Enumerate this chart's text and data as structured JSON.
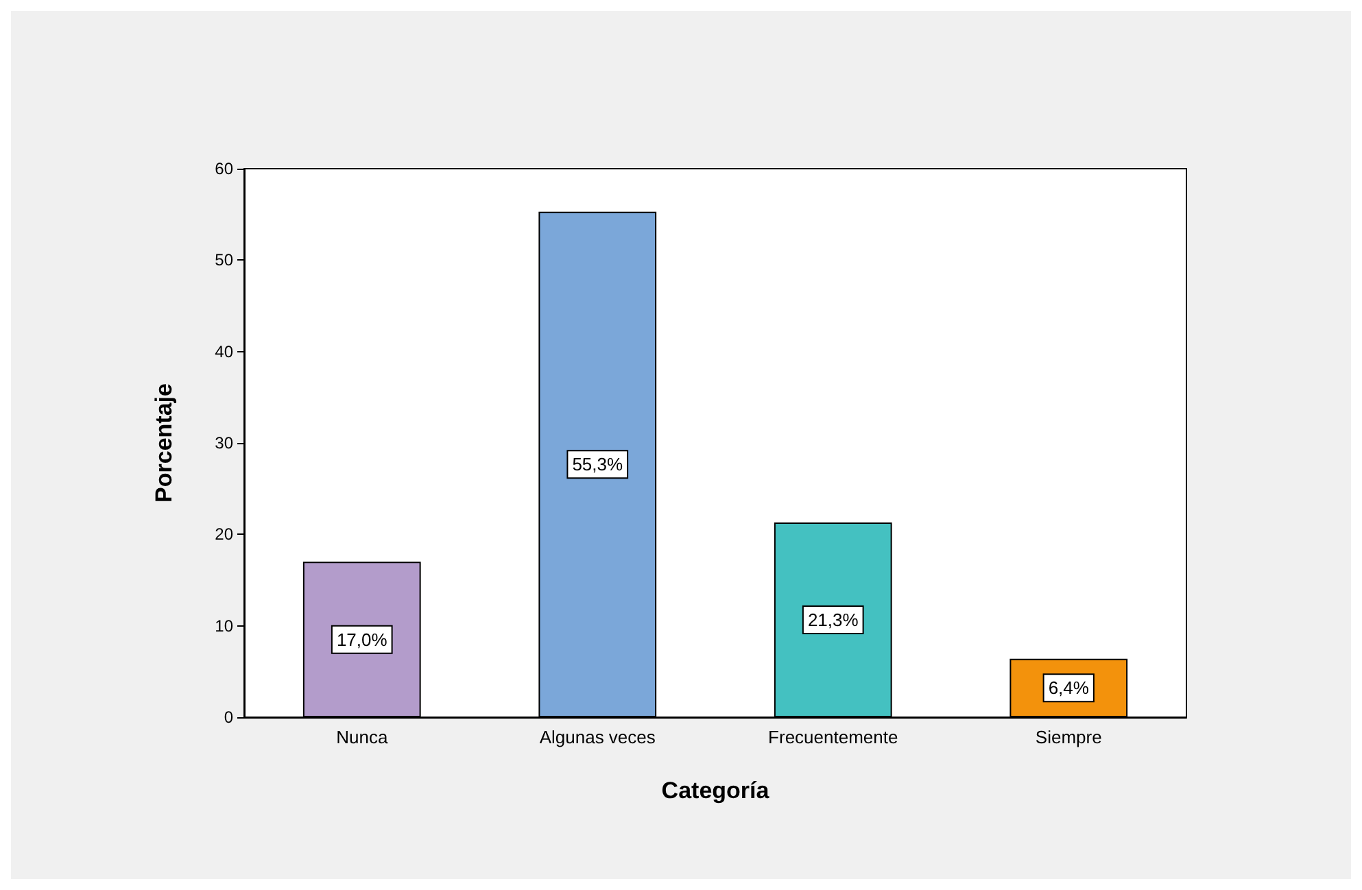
{
  "chart_data": {
    "type": "bar",
    "xlabel": "Categoría",
    "ylabel": "Porcentaje",
    "categories": [
      "Nunca",
      "Algunas veces",
      "Frecuentemente",
      "Siempre"
    ],
    "values": [
      17.0,
      55.3,
      21.3,
      6.4
    ],
    "colors": [
      "#b39ccb",
      "#7ba7d9",
      "#44c1c1",
      "#f3920c"
    ],
    "value_labels": [
      "17,0%",
      "55,3%",
      "21,3%",
      "6,4%"
    ],
    "ylim": [
      0,
      60
    ],
    "yticks": [
      0,
      10,
      20,
      30,
      40,
      50,
      60
    ],
    "grid": false
  }
}
